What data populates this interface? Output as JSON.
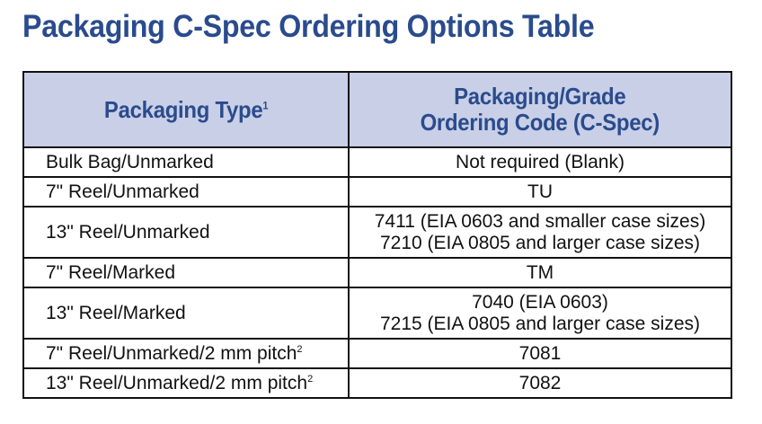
{
  "title": "Packaging C-Spec Ordering Options Table",
  "table": {
    "headers": {
      "type": "Packaging Type",
      "type_sup": "1",
      "code_line1": "Packaging/Grade",
      "code_line2": "Ordering Code (C-Spec)"
    },
    "rows": [
      {
        "type": "Bulk Bag/Unmarked",
        "type_sup": "",
        "code": [
          "Not required (Blank)"
        ]
      },
      {
        "type": "7\" Reel/Unmarked",
        "type_sup": "",
        "code": [
          "TU"
        ]
      },
      {
        "type": "13\" Reel/Unmarked",
        "type_sup": "",
        "code": [
          "7411 (EIA 0603 and smaller case sizes)",
          "7210 (EIA 0805 and larger case sizes)"
        ]
      },
      {
        "type": "7\" Reel/Marked",
        "type_sup": "",
        "code": [
          "TM"
        ]
      },
      {
        "type": "13\" Reel/Marked",
        "type_sup": "",
        "code": [
          "7040 (EIA 0603)",
          "7215 (EIA 0805 and larger case sizes)"
        ]
      },
      {
        "type": "7\" Reel/Unmarked/2 mm pitch",
        "type_sup": "2",
        "code": [
          "7081"
        ]
      },
      {
        "type": "13\" Reel/Unmarked/2 mm pitch",
        "type_sup": "2",
        "code": [
          "7082"
        ]
      }
    ]
  },
  "colors": {
    "title": "#2a4b8d",
    "header_bg": "#c9cfe6",
    "header_text": "#2a4b8d",
    "border": "#111111"
  }
}
